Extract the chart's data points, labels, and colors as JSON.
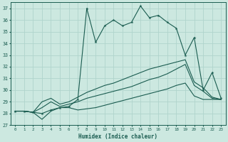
{
  "xlabel": "Humidex (Indice chaleur)",
  "xlim": [
    -0.5,
    23.5
  ],
  "ylim": [
    27,
    37.5
  ],
  "yticks": [
    27,
    28,
    29,
    30,
    31,
    32,
    33,
    34,
    35,
    36,
    37
  ],
  "xticks": [
    0,
    1,
    2,
    3,
    4,
    5,
    6,
    7,
    8,
    9,
    10,
    11,
    12,
    13,
    14,
    15,
    16,
    17,
    18,
    19,
    20,
    21,
    22,
    23
  ],
  "bg_color": "#cce8e0",
  "grid_color": "#b0d4cc",
  "line_color": "#1a5c50",
  "max_vals": [
    28.2,
    28.2,
    28.1,
    28.0,
    28.3,
    28.5,
    28.6,
    29.2,
    37.0,
    34.1,
    35.5,
    36.0,
    35.5,
    35.8,
    37.2,
    36.2,
    36.4,
    35.8,
    35.3,
    33.0,
    34.5,
    30.0,
    31.5,
    29.3
  ],
  "min_vals": [
    28.2,
    28.2,
    28.1,
    27.5,
    28.2,
    28.5,
    28.5,
    28.3,
    28.4,
    28.5,
    28.7,
    28.9,
    29.1,
    29.3,
    29.5,
    29.7,
    29.9,
    30.1,
    30.4,
    30.6,
    29.5,
    29.2,
    29.2,
    29.2
  ],
  "avg1_vals": [
    28.2,
    28.2,
    28.1,
    28.5,
    29.0,
    28.6,
    28.8,
    29.0,
    29.3,
    29.5,
    29.7,
    29.9,
    30.1,
    30.3,
    30.6,
    30.9,
    31.1,
    31.4,
    31.8,
    32.2,
    30.4,
    29.9,
    29.3,
    29.2
  ],
  "avg2_vals": [
    28.2,
    28.2,
    28.1,
    29.0,
    29.3,
    28.8,
    29.0,
    29.4,
    29.8,
    30.1,
    30.4,
    30.6,
    30.9,
    31.2,
    31.5,
    31.8,
    32.0,
    32.2,
    32.4,
    32.6,
    30.7,
    30.2,
    29.4,
    29.2
  ]
}
